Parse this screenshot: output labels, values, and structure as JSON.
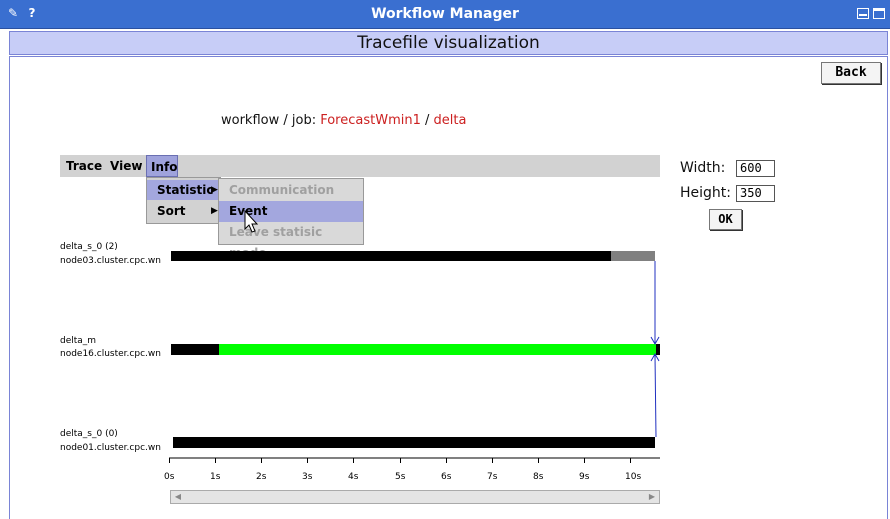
{
  "window": {
    "title": "Workflow Manager",
    "icons": [
      "pencil-icon",
      "help-icon",
      "minimize-icon",
      "maximize-icon"
    ],
    "help_glyph": "?"
  },
  "header": {
    "title": "Tracefile visualization"
  },
  "back_label": "Back",
  "job": {
    "prefix": "workflow / job:",
    "workflow": "ForecastWmin1",
    "separator": "/",
    "job": "delta"
  },
  "menu": {
    "items": [
      "Trace",
      "View",
      "Info"
    ],
    "info_dropdown": [
      "Statistic",
      "Sort"
    ],
    "statistic_submenu": [
      {
        "label": "Communication",
        "state": "disabled"
      },
      {
        "label": "Event",
        "state": "selected"
      },
      {
        "label": "Leave statisic mode",
        "state": "disabled"
      }
    ]
  },
  "size": {
    "width_label": "Width:",
    "width_value": "600",
    "height_label": "Height:",
    "height_value": "350",
    "ok_label": "OK"
  },
  "trace": {
    "rows": [
      {
        "name": "delta_s_0 (2)",
        "node": "node03.cluster.cpc.wn"
      },
      {
        "name": "delta_m",
        "node": "node16.cluster.cpc.wn"
      },
      {
        "name": "delta_s_0 (0)",
        "node": "node01.cluster.cpc.wn"
      }
    ],
    "ticks": [
      "0s",
      "1s",
      "2s",
      "3s",
      "4s",
      "5s",
      "6s",
      "7s",
      "8s",
      "9s",
      "10s"
    ],
    "bar_color_busy": "#000000",
    "bar_color_idle": "#808080",
    "bar_color_active": "#00ff00",
    "message_color": "#2030c0"
  },
  "colors": {
    "titlebar": "#3a6fd0",
    "header_bg": "#c7cdf7",
    "menu_selected": "#9fa3dc",
    "link_red": "#cc2020"
  }
}
